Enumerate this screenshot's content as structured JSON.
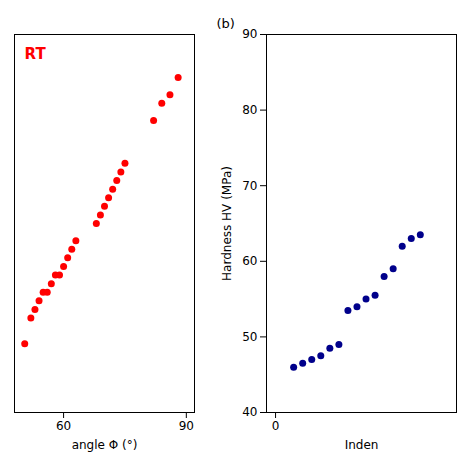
{
  "chart_data": [
    {
      "type": "scatter",
      "x": [
        50.5,
        52,
        53,
        54,
        55,
        56,
        57,
        58,
        59,
        60,
        61,
        62,
        63,
        68,
        69,
        70,
        71,
        72,
        73,
        74,
        75,
        82,
        84,
        86,
        88
      ],
      "values": [
        67,
        68.5,
        69,
        69.5,
        70,
        70,
        70.5,
        71,
        71,
        71.5,
        72,
        72.5,
        73,
        74,
        74.5,
        75,
        75.5,
        76,
        76.5,
        77,
        77.5,
        80,
        81,
        81.5,
        82.5
      ],
      "color": "#ff0000",
      "xlabel": "angle Φ (°)",
      "xlim": [
        48,
        92
      ],
      "ylim": [
        63,
        85
      ],
      "xticks": [
        60,
        90
      ],
      "yticks": [],
      "tick_labels": "x",
      "annotations": [
        {
          "text": "RT",
          "color": "#ff0000"
        }
      ]
    },
    {
      "type": "scatter",
      "x": [
        1,
        1.5,
        2,
        2.5,
        3,
        3.5,
        4,
        4.5,
        5,
        5.5,
        6,
        6.5,
        7,
        7.5,
        8
      ],
      "values": [
        46,
        46.5,
        47,
        47.5,
        48.5,
        49,
        53.5,
        54,
        55,
        55.5,
        58,
        59,
        62,
        63,
        63.5
      ],
      "color": "#00008b",
      "xlabel": "Inden",
      "ylabel": "Hardness HV (MPa)",
      "xlim": [
        -0.5,
        10
      ],
      "ylim": [
        40,
        90
      ],
      "xticks": [
        0
      ],
      "yticks": [
        40,
        50,
        60,
        70,
        80,
        90
      ],
      "annotations": [
        {
          "text": "(b)",
          "color": "#000000"
        }
      ]
    }
  ]
}
